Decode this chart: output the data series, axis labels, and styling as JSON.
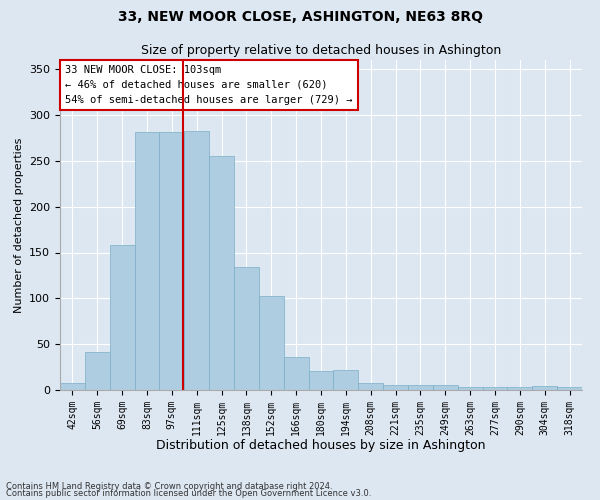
{
  "title": "33, NEW MOOR CLOSE, ASHINGTON, NE63 8RQ",
  "subtitle": "Size of property relative to detached houses in Ashington",
  "xlabel": "Distribution of detached houses by size in Ashington",
  "ylabel": "Number of detached properties",
  "categories": [
    "42sqm",
    "56sqm",
    "69sqm",
    "83sqm",
    "97sqm",
    "111sqm",
    "125sqm",
    "138sqm",
    "152sqm",
    "166sqm",
    "180sqm",
    "194sqm",
    "208sqm",
    "221sqm",
    "235sqm",
    "249sqm",
    "263sqm",
    "277sqm",
    "290sqm",
    "304sqm",
    "318sqm"
  ],
  "values": [
    8,
    41,
    158,
    281,
    282,
    283,
    255,
    134,
    103,
    36,
    21,
    22,
    8,
    6,
    5,
    5,
    3,
    3,
    3,
    4,
    3
  ],
  "bar_color": "#aecde0",
  "bar_edge_color": "#7aaec8",
  "bg_color": "#dde7f2",
  "grid_color": "#ffffff",
  "vline_color": "#cc0000",
  "annotation_text": "33 NEW MOOR CLOSE: 103sqm\n← 46% of detached houses are smaller (620)\n54% of semi-detached houses are larger (729) →",
  "annotation_box_color": "#ffffff",
  "annotation_box_edge": "#cc0000",
  "footer1": "Contains HM Land Registry data © Crown copyright and database right 2024.",
  "footer2": "Contains public sector information licensed under the Open Government Licence v3.0.",
  "ylim": [
    0,
    360
  ],
  "title_fontsize": 10,
  "subtitle_fontsize": 9,
  "ylabel_fontsize": 8,
  "xlabel_fontsize": 9
}
